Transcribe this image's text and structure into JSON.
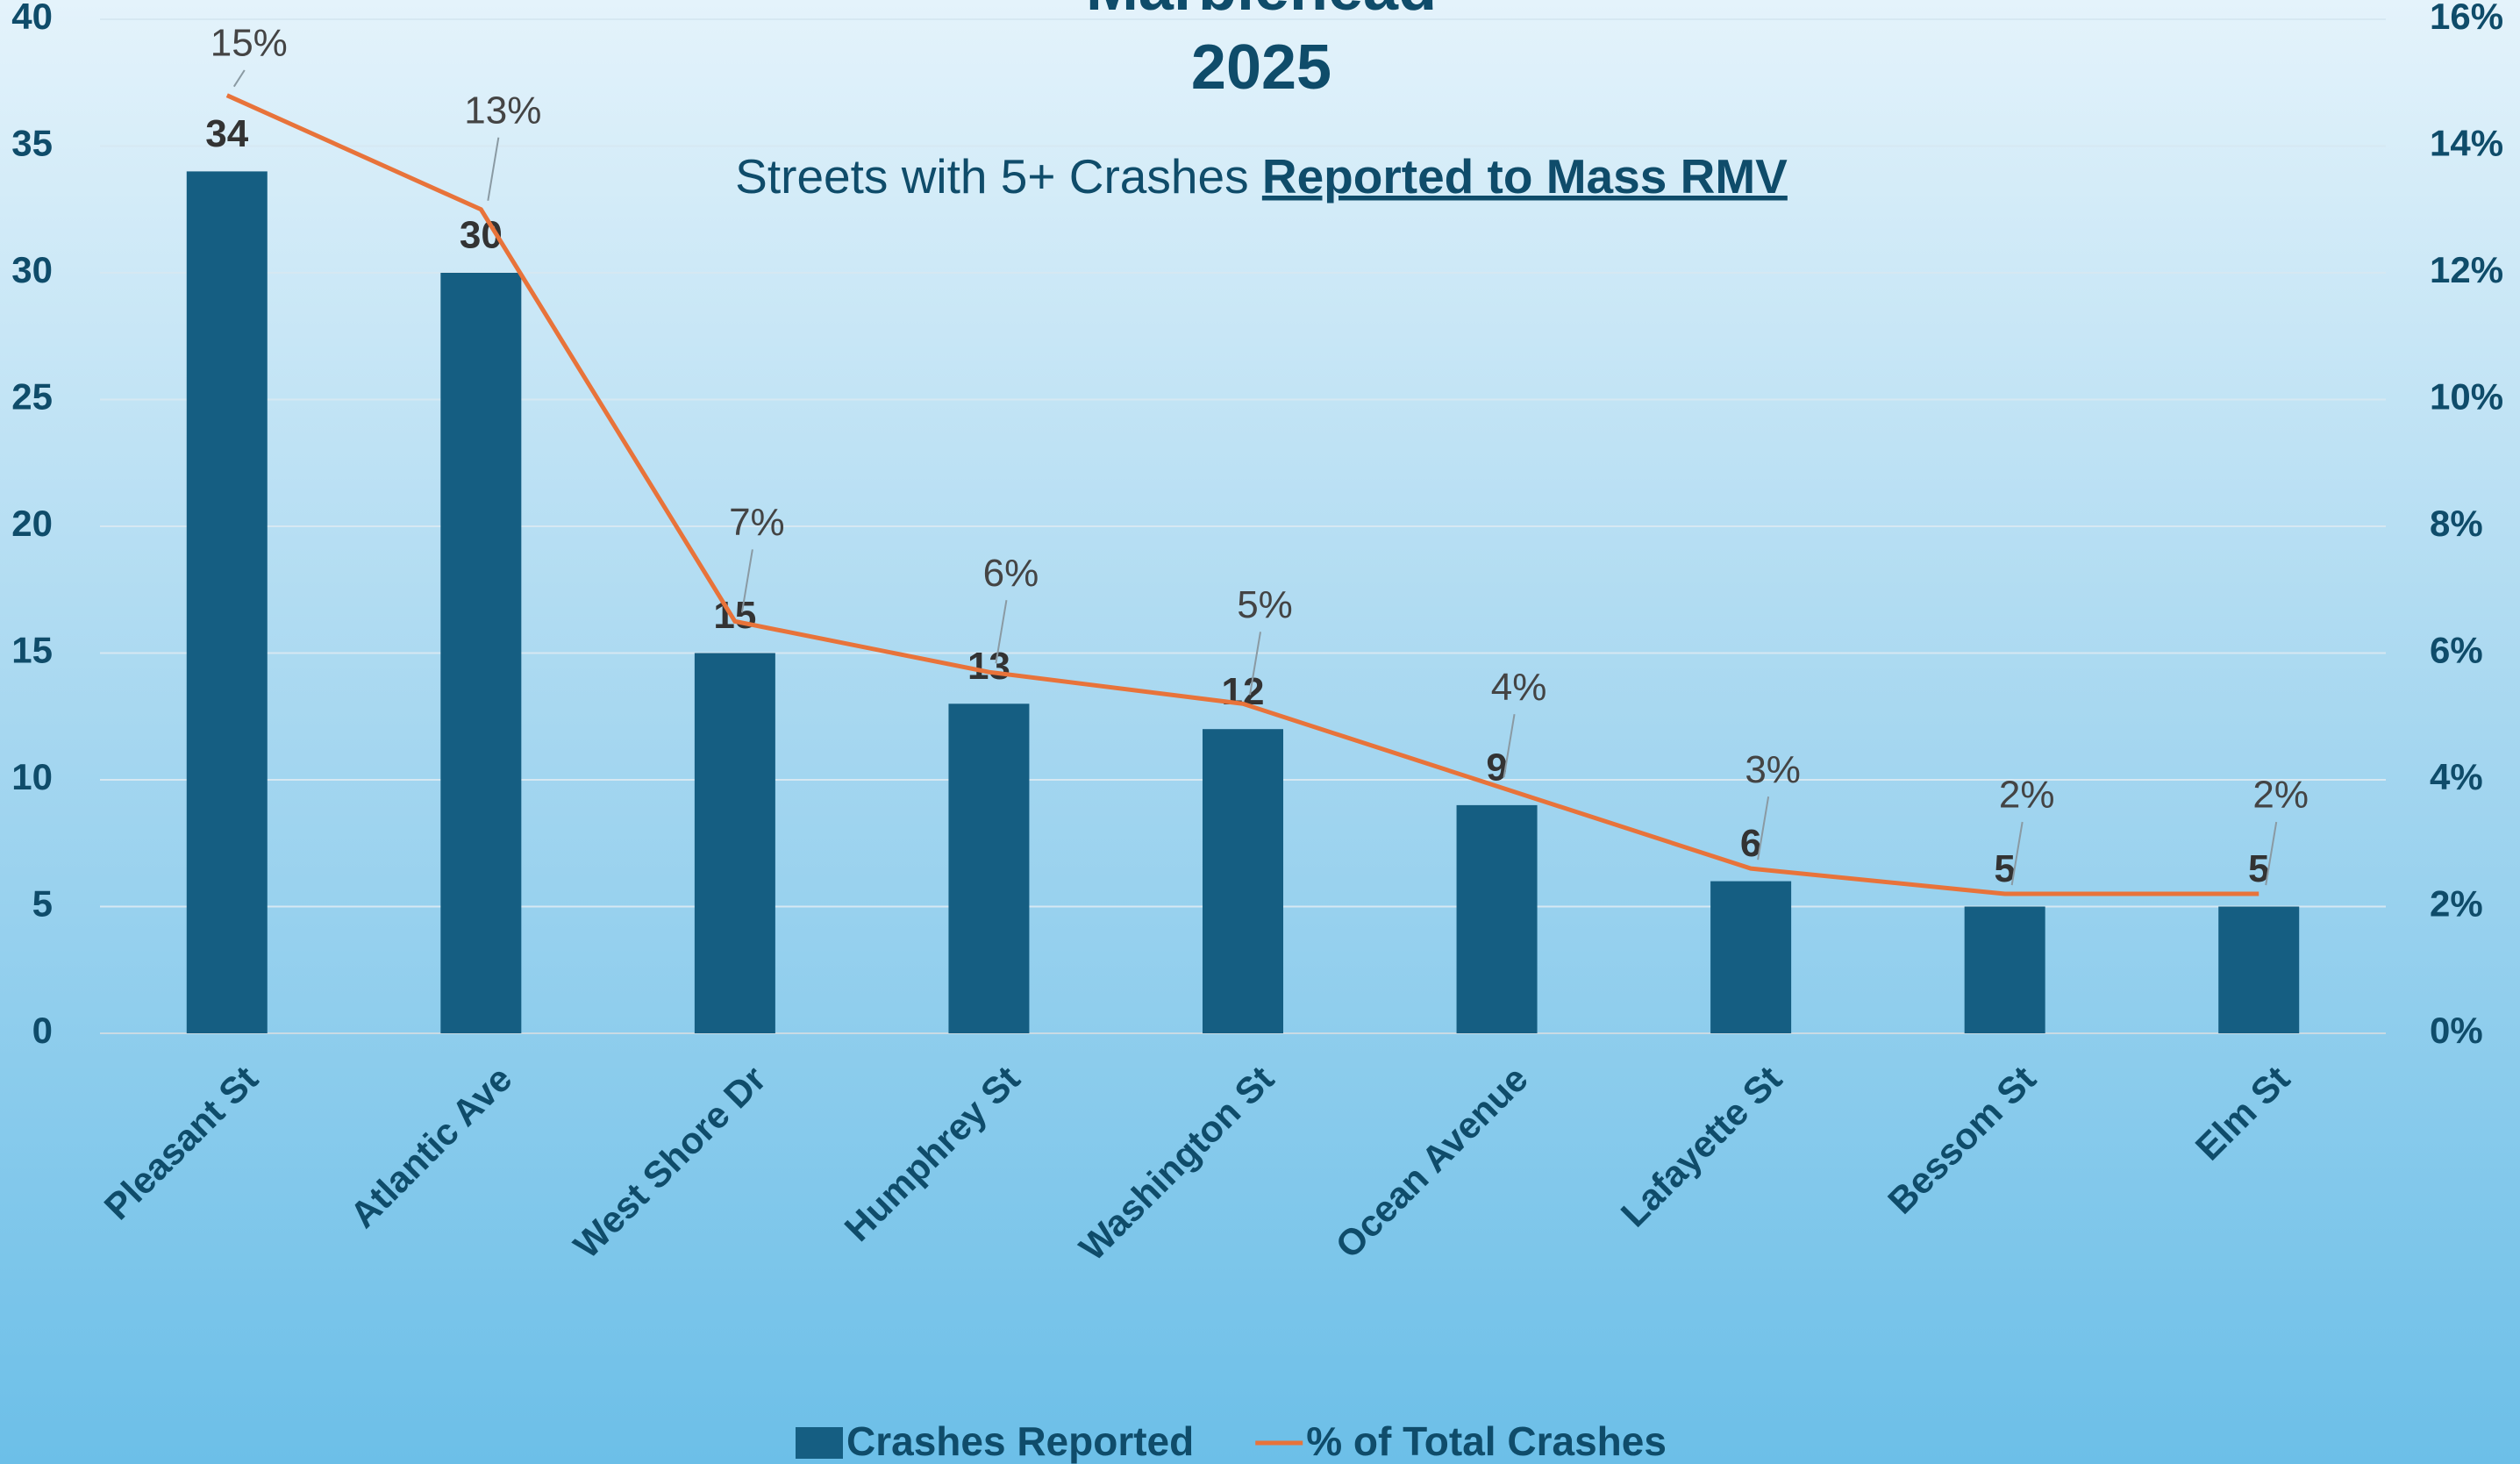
{
  "chart_data": {
    "type": "bar+line",
    "title": [
      "Marblehead",
      "2025"
    ],
    "subtitle": [
      "Streets with 5+ Crashes",
      "Reported to Mass RMV"
    ],
    "categories": [
      "Pleasant St",
      "Atlantic Ave",
      "West Shore Dr",
      "Humphrey St",
      "Washington St",
      "Ocean Avenue",
      "Lafayette St",
      "Bessom St",
      "Elm St"
    ],
    "series": [
      {
        "name": "Crashes Reported",
        "type": "bar",
        "color": "#155e82",
        "values": [
          34,
          30,
          15,
          13,
          12,
          9,
          6,
          5,
          5
        ]
      },
      {
        "name": "% of Total Crashes",
        "type": "line",
        "axis": "y2",
        "color": "#e8733a",
        "values": [
          14.8,
          13.0,
          6.5,
          5.7,
          5.2,
          3.9,
          2.6,
          2.2,
          2.2
        ],
        "value_labels": [
          "15%",
          "13%",
          "7%",
          "6%",
          "5%",
          "4%",
          "3%",
          "2%",
          "2%"
        ]
      }
    ],
    "ylim": [
      0,
      40
    ],
    "yticks": [
      0,
      5,
      10,
      15,
      20,
      25,
      30,
      35,
      40
    ],
    "y2lim": [
      0,
      16
    ],
    "y2ticks": [
      {
        "value": 0,
        "label": "0%"
      },
      {
        "value": 2,
        "label": "2%"
      },
      {
        "value": 4,
        "label": "4%"
      },
      {
        "value": 6,
        "label": "6%"
      },
      {
        "value": 8,
        "label": "8%"
      },
      {
        "value": 10,
        "label": "10%"
      },
      {
        "value": 12,
        "label": "12%"
      },
      {
        "value": 14,
        "label": "14%"
      },
      {
        "value": 16,
        "label": "16%"
      }
    ],
    "grid": true,
    "legend": "bottom"
  }
}
